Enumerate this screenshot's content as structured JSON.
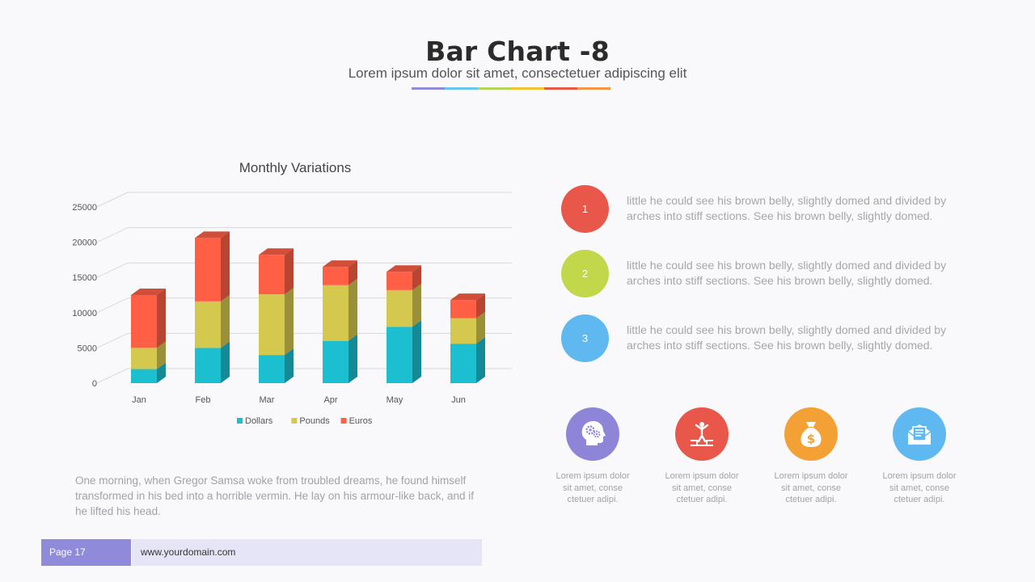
{
  "header": {
    "title": "Bar Chart -8",
    "subtitle": "Lorem ipsum dolor sit amet, consectetuer adipiscing elit",
    "underline_colors": [
      "#8f8ad9",
      "#6cc4f1",
      "#b5d55a",
      "#f1c232",
      "#e35b46",
      "#f0974a"
    ]
  },
  "chart_data": {
    "type": "bar",
    "stacked": true,
    "title": "Monthly Variations",
    "categories": [
      "Jan",
      "Feb",
      "Mar",
      "Apr",
      "May",
      "Jun"
    ],
    "series": [
      {
        "name": "Dollars",
        "color": "#1bbfcf",
        "values": [
          2000,
          5000,
          4000,
          6000,
          8000,
          5600
        ]
      },
      {
        "name": "Pounds",
        "color": "#d4c84e",
        "values": [
          3000,
          6600,
          8600,
          7900,
          5200,
          3600
        ]
      },
      {
        "name": "Euros",
        "color": "#ff5f45",
        "values": [
          7500,
          9000,
          5600,
          2600,
          2600,
          2600
        ]
      }
    ],
    "ylim": [
      0,
      25000
    ],
    "yticks": [
      0,
      5000,
      10000,
      15000,
      20000,
      25000
    ],
    "grid": true,
    "legend": "bottom"
  },
  "description": "One morning, when Gregor Samsa woke from troubled dreams, he found himself transformed in his bed into a horrible vermin. He lay on his armour-like back, and if he lifted his head.",
  "footer": {
    "page": "Page 17",
    "url": "www.yourdomain.com"
  },
  "points": [
    {
      "num": "1",
      "color": "#e8574a",
      "text": "little he could see his brown belly, slightly domed and divided by arches into stiff sections. See his brown belly, slightly domed."
    },
    {
      "num": "2",
      "color": "#c2d84a",
      "text": "little he could see his brown belly, slightly domed and divided by arches into stiff sections. See his brown belly, slightly domed."
    },
    {
      "num": "3",
      "color": "#5fb9f0",
      "text": "little he could see his brown belly, slightly domed and divided by arches into stiff sections. See his brown belly, slightly domed."
    }
  ],
  "features": [
    {
      "icon": "head-gears-icon",
      "color": "#8f85d8",
      "caption": "Lorem ipsum dolor sit amet, conse ctetuer adipi."
    },
    {
      "icon": "person-success-icon",
      "color": "#e8574a",
      "caption": "Lorem ipsum dolor sit amet, conse ctetuer adipi."
    },
    {
      "icon": "money-bag-icon",
      "color": "#f3a035",
      "caption": "Lorem ipsum dolor sit amet, conse ctetuer adipi."
    },
    {
      "icon": "envelope-letter-icon",
      "color": "#5fb9f0",
      "caption": "Lorem ipsum dolor sit amet, conse ctetuer adipi."
    }
  ]
}
